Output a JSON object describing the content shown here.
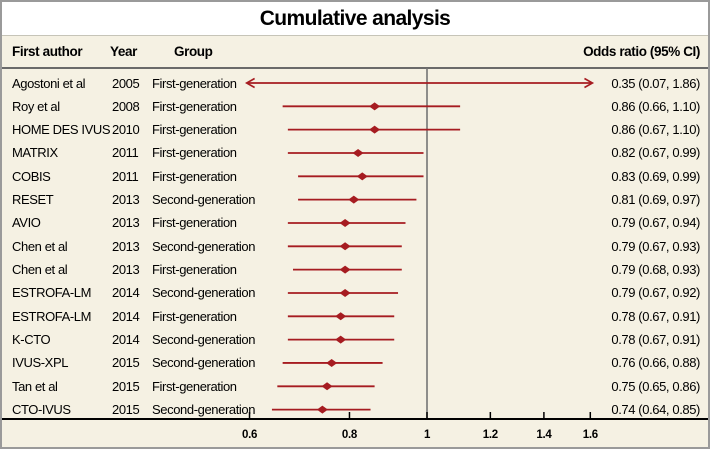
{
  "title": "Cumulative analysis",
  "header": {
    "first_author": "First author",
    "year": "Year",
    "group": "Group",
    "odds_ratio": "Odds ratio (95% CI)"
  },
  "colors": {
    "background": "#f5f1e3",
    "title_bg": "#ffffff",
    "ci_color": "#a61c21",
    "ref_line": "#757575",
    "axis": "#000000",
    "border": "#9a9a9a"
  },
  "chart_data": {
    "type": "forest",
    "scale": "log",
    "ref_value": 1,
    "x_ticks": [
      0.6,
      0.8,
      1,
      1.2,
      1.4,
      1.6
    ],
    "x_tick_labels": [
      "0.6",
      "0.8",
      "1",
      "1.2",
      "1.4",
      "1.6"
    ],
    "x_plot_range": [
      0.595,
      1.61
    ],
    "rows": [
      {
        "author": "Agostoni et al",
        "year": "2005",
        "group": "First-generation",
        "or": 0.35,
        "ci_low": 0.07,
        "ci_high": 1.86,
        "label": "0.35 (0.07, 1.86)"
      },
      {
        "author": "Roy et al",
        "year": "2008",
        "group": "First-generation",
        "or": 0.86,
        "ci_low": 0.66,
        "ci_high": 1.1,
        "label": "0.86 (0.66, 1.10)"
      },
      {
        "author": "HOME DES IVUS",
        "year": "2010",
        "group": "First-generation",
        "or": 0.86,
        "ci_low": 0.67,
        "ci_high": 1.1,
        "label": "0.86 (0.67, 1.10)"
      },
      {
        "author": "MATRIX",
        "year": "2011",
        "group": "First-generation",
        "or": 0.82,
        "ci_low": 0.67,
        "ci_high": 0.99,
        "label": "0.82 (0.67, 0.99)"
      },
      {
        "author": "COBIS",
        "year": "2011",
        "group": "First-generation",
        "or": 0.83,
        "ci_low": 0.69,
        "ci_high": 0.99,
        "label": "0.83 (0.69, 0.99)"
      },
      {
        "author": "RESET",
        "year": "2013",
        "group": "Second-generation",
        "or": 0.81,
        "ci_low": 0.69,
        "ci_high": 0.97,
        "label": "0.81 (0.69, 0.97)"
      },
      {
        "author": "AVIO",
        "year": "2013",
        "group": "First-generation",
        "or": 0.79,
        "ci_low": 0.67,
        "ci_high": 0.94,
        "label": "0.79 (0.67, 0.94)"
      },
      {
        "author": "Chen et al",
        "year": "2013",
        "group": "Second-generation",
        "or": 0.79,
        "ci_low": 0.67,
        "ci_high": 0.93,
        "label": "0.79 (0.67, 0.93)"
      },
      {
        "author": "Chen et al",
        "year": "2013",
        "group": "First-generation",
        "or": 0.79,
        "ci_low": 0.68,
        "ci_high": 0.93,
        "label": "0.79 (0.68, 0.93)"
      },
      {
        "author": "ESTROFA-LM",
        "year": "2014",
        "group": "Second-generation",
        "or": 0.79,
        "ci_low": 0.67,
        "ci_high": 0.92,
        "label": "0.79 (0.67, 0.92)"
      },
      {
        "author": "ESTROFA-LM",
        "year": "2014",
        "group": "First-generation",
        "or": 0.78,
        "ci_low": 0.67,
        "ci_high": 0.91,
        "label": "0.78 (0.67, 0.91)"
      },
      {
        "author": "K-CTO",
        "year": "2014",
        "group": "Second-generation",
        "or": 0.78,
        "ci_low": 0.67,
        "ci_high": 0.91,
        "label": "0.78 (0.67, 0.91)"
      },
      {
        "author": "IVUS-XPL",
        "year": "2015",
        "group": "Second-generation",
        "or": 0.76,
        "ci_low": 0.66,
        "ci_high": 0.88,
        "label": "0.76 (0.66, 0.88)"
      },
      {
        "author": "Tan et al",
        "year": "2015",
        "group": "First-generation",
        "or": 0.75,
        "ci_low": 0.65,
        "ci_high": 0.86,
        "label": "0.75 (0.65, 0.86)"
      },
      {
        "author": "CTO-IVUS",
        "year": "2015",
        "group": "Second-generation",
        "or": 0.74,
        "ci_low": 0.64,
        "ci_high": 0.85,
        "label": "0.74 (0.64, 0.85)"
      }
    ]
  }
}
